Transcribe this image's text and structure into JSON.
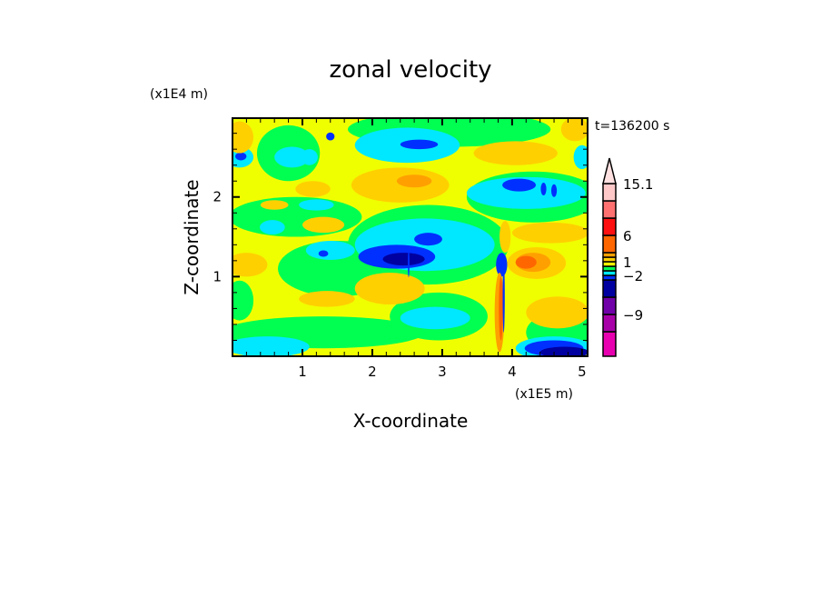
{
  "chart_data": {
    "type": "heatmap",
    "title": "zonal velocity",
    "xlabel": "X-coordinate",
    "ylabel": "Z-coordinate",
    "x_unit_label": "(x1E5 m)",
    "y_unit_label": "(x1E4 m)",
    "time_label": "t=136200 s",
    "xlim": [
      0,
      5.08
    ],
    "ylim": [
      0,
      2.99
    ],
    "x_ticks": [
      1,
      2,
      3,
      4,
      5
    ],
    "x_tick_labels": [
      "1",
      "2",
      "3",
      "4",
      "5"
    ],
    "y_ticks": [
      1,
      2
    ],
    "y_tick_labels": [
      "1",
      "2"
    ],
    "colorbar": {
      "boxes_bottom_to_top": [
        {
          "color": "#e800b0"
        },
        {
          "color": "#a800a8"
        },
        {
          "color": "#7000a8"
        },
        {
          "color": "#0000a0"
        },
        {
          "color": "#0030ff"
        },
        {
          "color": "#00e8ff"
        },
        {
          "color": "#00ff50"
        },
        {
          "color": "#f0ff00"
        },
        {
          "color": "#ffd000"
        },
        {
          "color": "#ffa000"
        },
        {
          "color": "#ff6600"
        },
        {
          "color": "#ff1010"
        },
        {
          "color": "#ff7070"
        },
        {
          "color": "#ffc8c8"
        }
      ],
      "triangle_color": "#ffe0e0",
      "labels": [
        {
          "text": "15.1",
          "boundary": 14
        },
        {
          "text": "6",
          "boundary": 11
        },
        {
          "text": "1",
          "boundary": 8
        },
        {
          "text": "-2",
          "boundary": 5
        },
        {
          "text": "-9",
          "boundary": 2
        }
      ]
    },
    "background_color": "#f0ff00",
    "regions_note": "approximate contour regions: center (x,z) and half-extents in data units",
    "regions": [
      {
        "c": "#00ff50",
        "x": 3.1,
        "z": 2.85,
        "rx": 1.45,
        "rz": 0.22
      },
      {
        "c": "#00ff50",
        "x": 0.8,
        "z": 2.55,
        "rx": 0.45,
        "rz": 0.35
      },
      {
        "c": "#00ff50",
        "x": 0.9,
        "z": 1.75,
        "rx": 0.95,
        "rz": 0.25
      },
      {
        "c": "#00ff50",
        "x": 1.5,
        "z": 1.1,
        "rx": 0.85,
        "rz": 0.35
      },
      {
        "c": "#00ff50",
        "x": 1.3,
        "z": 0.3,
        "rx": 1.45,
        "rz": 0.2
      },
      {
        "c": "#00ff50",
        "x": 4.3,
        "z": 2.0,
        "rx": 0.95,
        "rz": 0.32
      },
      {
        "c": "#00ff50",
        "x": 2.8,
        "z": 1.4,
        "rx": 1.15,
        "rz": 0.5
      },
      {
        "c": "#00ff50",
        "x": 2.95,
        "z": 0.5,
        "rx": 0.7,
        "rz": 0.3
      },
      {
        "c": "#00ff50",
        "x": 4.7,
        "z": 0.3,
        "rx": 0.5,
        "rz": 0.25
      },
      {
        "c": "#00ff50",
        "x": 0.1,
        "z": 0.7,
        "rx": 0.2,
        "rz": 0.25
      },
      {
        "c": "#00e8ff",
        "x": 2.5,
        "z": 2.65,
        "rx": 0.75,
        "rz": 0.22
      },
      {
        "c": "#00e8ff",
        "x": 0.85,
        "z": 2.5,
        "rx": 0.25,
        "rz": 0.13
      },
      {
        "c": "#00e8ff",
        "x": 0.1,
        "z": 2.5,
        "rx": 0.2,
        "rz": 0.13
      },
      {
        "c": "#00e8ff",
        "x": 1.1,
        "z": 2.5,
        "rx": 0.12,
        "rz": 0.1
      },
      {
        "c": "#00e8ff",
        "x": 2.75,
        "z": 1.4,
        "rx": 1.0,
        "rz": 0.33
      },
      {
        "c": "#00e8ff",
        "x": 4.2,
        "z": 2.05,
        "rx": 0.85,
        "rz": 0.2
      },
      {
        "c": "#00e8ff",
        "x": 0.57,
        "z": 1.62,
        "rx": 0.18,
        "rz": 0.09
      },
      {
        "c": "#00e8ff",
        "x": 1.2,
        "z": 1.9,
        "rx": 0.25,
        "rz": 0.07
      },
      {
        "c": "#00e8ff",
        "x": 1.4,
        "z": 1.33,
        "rx": 0.35,
        "rz": 0.12
      },
      {
        "c": "#00e8ff",
        "x": 2.9,
        "z": 0.48,
        "rx": 0.5,
        "rz": 0.14
      },
      {
        "c": "#00e8ff",
        "x": 0.5,
        "z": 0.12,
        "rx": 0.6,
        "rz": 0.13
      },
      {
        "c": "#00e8ff",
        "x": 4.6,
        "z": 0.1,
        "rx": 0.55,
        "rz": 0.15
      },
      {
        "c": "#00e8ff",
        "x": 5.0,
        "z": 2.5,
        "rx": 0.12,
        "rz": 0.15
      },
      {
        "c": "#0030ff",
        "x": 2.67,
        "z": 2.66,
        "rx": 0.27,
        "rz": 0.06
      },
      {
        "c": "#0030ff",
        "x": 1.4,
        "z": 2.76,
        "rx": 0.06,
        "rz": 0.05
      },
      {
        "c": "#0030ff",
        "x": 0.12,
        "z": 2.51,
        "rx": 0.08,
        "rz": 0.05
      },
      {
        "c": "#0030ff",
        "x": 4.1,
        "z": 2.15,
        "rx": 0.24,
        "rz": 0.08
      },
      {
        "c": "#0030ff",
        "x": 4.45,
        "z": 2.1,
        "rx": 0.04,
        "rz": 0.08
      },
      {
        "c": "#0030ff",
        "x": 4.6,
        "z": 2.08,
        "rx": 0.04,
        "rz": 0.08
      },
      {
        "c": "#0030ff",
        "x": 2.35,
        "z": 1.25,
        "rx": 0.55,
        "rz": 0.15
      },
      {
        "c": "#0030ff",
        "x": 2.8,
        "z": 1.47,
        "rx": 0.2,
        "rz": 0.08
      },
      {
        "c": "#0030ff",
        "x": 1.3,
        "z": 1.29,
        "rx": 0.07,
        "rz": 0.04
      },
      {
        "c": "#0030ff",
        "x": 3.85,
        "z": 1.15,
        "rx": 0.08,
        "rz": 0.15
      },
      {
        "c": "#0030ff",
        "x": 4.6,
        "z": 0.1,
        "rx": 0.42,
        "rz": 0.1
      },
      {
        "c": "#0000a0",
        "x": 2.45,
        "z": 1.22,
        "rx": 0.3,
        "rz": 0.08
      },
      {
        "c": "#0000a0",
        "x": 4.75,
        "z": 0.05,
        "rx": 0.35,
        "rz": 0.07
      },
      {
        "c": "#ffd000",
        "x": 0.1,
        "z": 2.75,
        "rx": 0.2,
        "rz": 0.2
      },
      {
        "c": "#ffd000",
        "x": 2.4,
        "z": 2.15,
        "rx": 0.7,
        "rz": 0.22
      },
      {
        "c": "#ffd000",
        "x": 4.05,
        "z": 2.55,
        "rx": 0.6,
        "rz": 0.15
      },
      {
        "c": "#ffd000",
        "x": 4.9,
        "z": 2.85,
        "rx": 0.2,
        "rz": 0.15
      },
      {
        "c": "#ffd000",
        "x": 1.15,
        "z": 2.1,
        "rx": 0.25,
        "rz": 0.1
      },
      {
        "c": "#ffd000",
        "x": 0.6,
        "z": 1.9,
        "rx": 0.2,
        "rz": 0.06
      },
      {
        "c": "#ffd000",
        "x": 1.3,
        "z": 1.65,
        "rx": 0.3,
        "rz": 0.1
      },
      {
        "c": "#ffd000",
        "x": 0.2,
        "z": 1.15,
        "rx": 0.3,
        "rz": 0.15
      },
      {
        "c": "#ffd000",
        "x": 1.35,
        "z": 0.72,
        "rx": 0.4,
        "rz": 0.1
      },
      {
        "c": "#ffd000",
        "x": 2.25,
        "z": 0.85,
        "rx": 0.5,
        "rz": 0.2
      },
      {
        "c": "#ffd000",
        "x": 4.55,
        "z": 1.55,
        "rx": 0.55,
        "rz": 0.13
      },
      {
        "c": "#ffd000",
        "x": 4.35,
        "z": 1.17,
        "rx": 0.42,
        "rz": 0.2
      },
      {
        "c": "#ffd000",
        "x": 4.65,
        "z": 0.55,
        "rx": 0.45,
        "rz": 0.2
      },
      {
        "c": "#ffd000",
        "x": 3.9,
        "z": 1.5,
        "rx": 0.08,
        "rz": 0.2
      },
      {
        "c": "#ffa000",
        "x": 4.3,
        "z": 1.18,
        "rx": 0.25,
        "rz": 0.12
      },
      {
        "c": "#ffa000",
        "x": 2.6,
        "z": 2.2,
        "rx": 0.25,
        "rz": 0.08
      },
      {
        "c": "#ffa000",
        "x": 3.82,
        "z": 0.55,
        "rx": 0.07,
        "rz": 0.5
      },
      {
        "c": "#ff6600",
        "x": 4.2,
        "z": 1.18,
        "rx": 0.15,
        "rz": 0.08
      },
      {
        "c": "#ff6600",
        "x": 3.84,
        "z": 0.6,
        "rx": 0.03,
        "rz": 0.4
      },
      {
        "c": "#0030ff",
        "x": 3.88,
        "z": 0.75,
        "rx": 0.015,
        "rz": 0.45
      },
      {
        "c": "#0030ff",
        "x": 2.52,
        "z": 1.17,
        "rx": 0.012,
        "rz": 0.18
      }
    ]
  }
}
